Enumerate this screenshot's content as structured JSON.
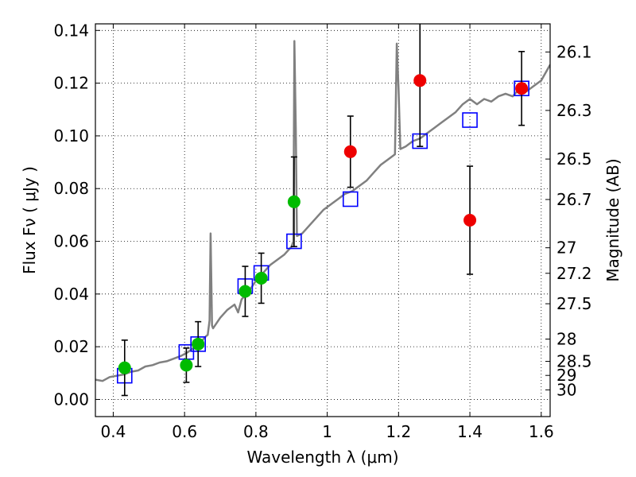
{
  "chart_data": {
    "type": "scatter",
    "xlabel": "Wavelength  λ (μm)",
    "ylabel": "Flux  Fν  ( μJy )",
    "ylabel_right": "Magnitude (AB)",
    "xlim": [
      0.35,
      1.625
    ],
    "ylim": [
      -0.0065,
      0.1425
    ],
    "grid": true,
    "x_ticks": [
      {
        "value": 0.4,
        "label": "0.4"
      },
      {
        "value": 0.6,
        "label": "0.6"
      },
      {
        "value": 0.8,
        "label": "0.8"
      },
      {
        "value": 1.0,
        "label": "1"
      },
      {
        "value": 1.2,
        "label": "1.2"
      },
      {
        "value": 1.4,
        "label": "1.4"
      },
      {
        "value": 1.6,
        "label": "1.6"
      }
    ],
    "y_ticks": [
      {
        "value": 0.0,
        "label": "0.00"
      },
      {
        "value": 0.02,
        "label": "0.02"
      },
      {
        "value": 0.04,
        "label": "0.04"
      },
      {
        "value": 0.06,
        "label": "0.06"
      },
      {
        "value": 0.08,
        "label": "0.08"
      },
      {
        "value": 0.1,
        "label": "0.10"
      },
      {
        "value": 0.12,
        "label": "0.12"
      },
      {
        "value": 0.14,
        "label": "0.14"
      }
    ],
    "mag_ticks": [
      {
        "value": 26.1,
        "label": "26.1"
      },
      {
        "value": 26.3,
        "label": "26.3"
      },
      {
        "value": 26.5,
        "label": "26.5"
      },
      {
        "value": 26.7,
        "label": "26.7"
      },
      {
        "value": 27,
        "label": "27"
      },
      {
        "value": 27.2,
        "label": "27.2"
      },
      {
        "value": 27.5,
        "label": "27.5"
      },
      {
        "value": 28,
        "label": "28"
      },
      {
        "value": 28.5,
        "label": "28.5"
      },
      {
        "value": 29,
        "label": "29"
      },
      {
        "value": 30,
        "label": "30"
      }
    ],
    "series": [
      {
        "kind": "line",
        "color": "#808080",
        "points": [
          [
            0.35,
            0.0075
          ],
          [
            0.37,
            0.007
          ],
          [
            0.39,
            0.0085
          ],
          [
            0.41,
            0.009
          ],
          [
            0.43,
            0.0095
          ],
          [
            0.45,
            0.0105
          ],
          [
            0.47,
            0.011
          ],
          [
            0.49,
            0.0125
          ],
          [
            0.51,
            0.013
          ],
          [
            0.53,
            0.014
          ],
          [
            0.55,
            0.0145
          ],
          [
            0.57,
            0.0155
          ],
          [
            0.59,
            0.0165
          ],
          [
            0.61,
            0.018
          ],
          [
            0.63,
            0.02
          ],
          [
            0.65,
            0.0225
          ],
          [
            0.66,
            0.024
          ],
          [
            0.665,
            0.0245
          ],
          [
            0.67,
            0.03
          ],
          [
            0.673,
            0.063
          ],
          [
            0.677,
            0.028
          ],
          [
            0.68,
            0.027
          ],
          [
            0.7,
            0.031
          ],
          [
            0.72,
            0.034
          ],
          [
            0.74,
            0.036
          ],
          [
            0.75,
            0.033
          ],
          [
            0.76,
            0.038
          ],
          [
            0.78,
            0.041
          ],
          [
            0.8,
            0.045
          ],
          [
            0.82,
            0.048
          ],
          [
            0.84,
            0.051
          ],
          [
            0.86,
            0.053
          ],
          [
            0.88,
            0.055
          ],
          [
            0.9,
            0.058
          ],
          [
            0.905,
            0.06
          ],
          [
            0.908,
            0.136
          ],
          [
            0.912,
            0.102
          ],
          [
            0.915,
            0.062
          ],
          [
            0.93,
            0.063
          ],
          [
            0.95,
            0.066
          ],
          [
            0.97,
            0.069
          ],
          [
            0.99,
            0.072
          ],
          [
            1.01,
            0.074
          ],
          [
            1.03,
            0.076
          ],
          [
            1.05,
            0.078
          ],
          [
            1.07,
            0.079
          ],
          [
            1.09,
            0.081
          ],
          [
            1.11,
            0.083
          ],
          [
            1.13,
            0.086
          ],
          [
            1.15,
            0.089
          ],
          [
            1.17,
            0.091
          ],
          [
            1.19,
            0.093
          ],
          [
            1.195,
            0.135
          ],
          [
            1.2,
            0.118
          ],
          [
            1.205,
            0.095
          ],
          [
            1.22,
            0.096
          ],
          [
            1.24,
            0.098
          ],
          [
            1.26,
            0.099
          ],
          [
            1.28,
            0.101
          ],
          [
            1.3,
            0.103
          ],
          [
            1.32,
            0.105
          ],
          [
            1.34,
            0.107
          ],
          [
            1.36,
            0.109
          ],
          [
            1.38,
            0.112
          ],
          [
            1.4,
            0.114
          ],
          [
            1.42,
            0.112
          ],
          [
            1.44,
            0.114
          ],
          [
            1.46,
            0.113
          ],
          [
            1.48,
            0.115
          ],
          [
            1.5,
            0.116
          ],
          [
            1.52,
            0.115
          ],
          [
            1.54,
            0.118
          ],
          [
            1.56,
            0.117
          ],
          [
            1.58,
            0.119
          ],
          [
            1.6,
            0.121
          ],
          [
            1.625,
            0.127
          ]
        ]
      },
      {
        "kind": "model-squares",
        "color": "#0000ff",
        "x": [
          0.432,
          0.605,
          0.638,
          0.77,
          0.815,
          0.907,
          1.065,
          1.26,
          1.4,
          1.545
        ],
        "y": [
          0.009,
          0.018,
          0.021,
          0.043,
          0.048,
          0.06,
          0.076,
          0.098,
          0.106,
          0.118
        ]
      },
      {
        "kind": "detections",
        "color": "#00bb00",
        "x": [
          0.432,
          0.605,
          0.638,
          0.77,
          0.815,
          0.907
        ],
        "y": [
          0.012,
          0.013,
          0.021,
          0.041,
          0.046,
          0.075
        ],
        "yerr": [
          0.0105,
          0.0065,
          0.0085,
          0.0095,
          0.0095,
          0.017
        ]
      },
      {
        "kind": "detections",
        "color": "#ee0000",
        "x": [
          1.065,
          1.26,
          1.4,
          1.545
        ],
        "y": [
          0.094,
          0.121,
          0.068,
          0.118
        ],
        "yerr": [
          0.0135,
          0.025,
          0.0205,
          0.014
        ]
      }
    ]
  }
}
